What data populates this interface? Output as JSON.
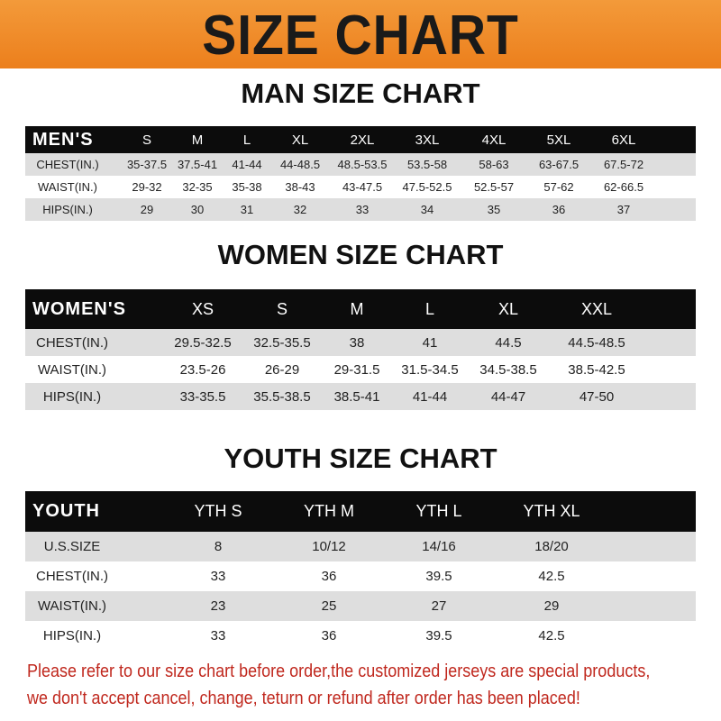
{
  "title": "SIZE CHART",
  "colors": {
    "banner": "#ef8a26",
    "header_row": "#0c0c0c",
    "stripe": "#dedede",
    "note": "#c0281e"
  },
  "men": {
    "title": "MAN SIZE CHART",
    "header": [
      "MEN'S",
      "S",
      "M",
      "L",
      "XL",
      "2XL",
      "3XL",
      "4XL",
      "5XL",
      "6XL"
    ],
    "rows": [
      [
        "CHEST(IN.)",
        "35-37.5",
        "37.5-41",
        "41-44",
        "44-48.5",
        "48.5-53.5",
        "53.5-58",
        "58-63",
        "63-67.5",
        "67.5-72"
      ],
      [
        "WAIST(IN.)",
        "29-32",
        "32-35",
        "35-38",
        "38-43",
        "43-47.5",
        "47.5-52.5",
        "52.5-57",
        "57-62",
        "62-66.5"
      ],
      [
        "HIPS(IN.)",
        "29",
        "30",
        "31",
        "32",
        "33",
        "34",
        "35",
        "36",
        "37"
      ]
    ]
  },
  "women": {
    "title": "WOMEN SIZE CHART",
    "header": [
      "WOMEN'S",
      "XS",
      "S",
      "M",
      "L",
      "XL",
      "XXL"
    ],
    "rows": [
      [
        "CHEST(IN.)",
        "29.5-32.5",
        "32.5-35.5",
        "38",
        "41",
        "44.5",
        "44.5-48.5"
      ],
      [
        "WAIST(IN.)",
        "23.5-26",
        "26-29",
        "29-31.5",
        "31.5-34.5",
        "34.5-38.5",
        "38.5-42.5"
      ],
      [
        "HIPS(IN.)",
        "33-35.5",
        "35.5-38.5",
        "38.5-41",
        "41-44",
        "44-47",
        "47-50"
      ]
    ]
  },
  "youth": {
    "title": "YOUTH SIZE CHART",
    "header": [
      "YOUTH",
      "YTH S",
      "YTH M",
      "YTH L",
      "YTH XL"
    ],
    "rows": [
      [
        "U.S.SIZE",
        "8",
        "10/12",
        "14/16",
        "18/20"
      ],
      [
        "CHEST(IN.)",
        "33",
        "36",
        "39.5",
        "42.5"
      ],
      [
        "WAIST(IN.)",
        "23",
        "25",
        "27",
        "29"
      ],
      [
        "HIPS(IN.)",
        "33",
        "36",
        "39.5",
        "42.5"
      ]
    ]
  },
  "note": {
    "line1": "Please refer to our size chart before order,the customized jerseys are special products,",
    "line2": "we don't accept cancel, change, teturn or refund after order has been placed!"
  }
}
